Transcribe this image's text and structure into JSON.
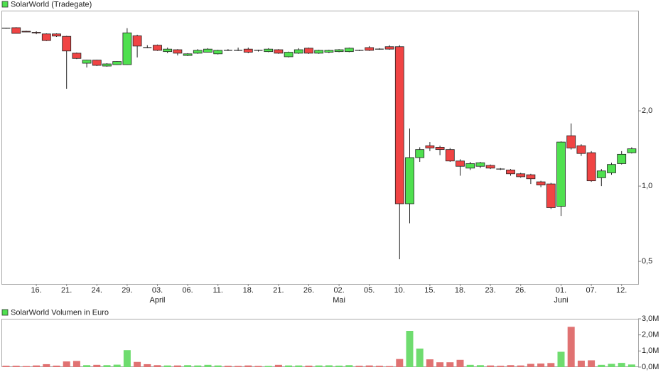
{
  "chart_data": [
    {
      "type": "candlestick",
      "title": "SolarWorld (Tradegate)",
      "categories": [
        null,
        null,
        null,
        "16.",
        null,
        null,
        "21.",
        null,
        null,
        "24.",
        null,
        null,
        "29.",
        null,
        null,
        "03.",
        null,
        null,
        "06.",
        null,
        null,
        "11.",
        null,
        null,
        "18.",
        null,
        null,
        "21.",
        null,
        null,
        "26.",
        null,
        null,
        "02.",
        null,
        null,
        "05.",
        null,
        null,
        "10.",
        null,
        null,
        "15.",
        null,
        null,
        "18.",
        null,
        null,
        "23.",
        null,
        null,
        "26.",
        null,
        null,
        null,
        "01.",
        null,
        null,
        "07.",
        null,
        null,
        "12.",
        null
      ],
      "months": [
        null,
        null,
        null,
        null,
        null,
        null,
        null,
        null,
        null,
        null,
        null,
        null,
        null,
        null,
        null,
        "April",
        null,
        null,
        null,
        null,
        null,
        null,
        null,
        null,
        null,
        null,
        null,
        null,
        null,
        null,
        null,
        null,
        null,
        "Mai",
        null,
        null,
        null,
        null,
        null,
        null,
        null,
        null,
        null,
        null,
        null,
        null,
        null,
        null,
        null,
        null,
        null,
        null,
        null,
        null,
        null,
        "Juni",
        null,
        null,
        null,
        null,
        null,
        null,
        null
      ],
      "open": [
        4.28,
        4.3,
        4.16,
        4.12,
        4.06,
        4.06,
        3.97,
        3.4,
        3.1,
        3.19,
        3.02,
        3.06,
        3.06,
        3.99,
        3.58,
        3.66,
        3.45,
        3.51,
        3.33,
        3.4,
        3.43,
        3.38,
        3.49,
        3.49,
        3.53,
        3.49,
        3.45,
        3.51,
        3.29,
        3.4,
        3.56,
        3.4,
        3.43,
        3.45,
        3.45,
        3.49,
        3.58,
        3.53,
        3.61,
        3.61,
        0.85,
        1.3,
        1.45,
        1.43,
        1.4,
        1.26,
        1.18,
        1.2,
        1.21,
        1.17,
        1.16,
        1.12,
        1.11,
        1.04,
        1.02,
        0.83,
        1.59,
        1.45,
        1.36,
        1.08,
        1.13,
        1.23,
        1.36
      ],
      "high": [
        4.3,
        4.32,
        4.18,
        4.16,
        4.08,
        4.08,
        3.99,
        3.42,
        3.2,
        3.2,
        3.1,
        3.16,
        4.28,
        4.03,
        3.66,
        3.68,
        3.58,
        3.53,
        3.4,
        3.53,
        3.56,
        3.51,
        3.53,
        3.58,
        3.58,
        3.51,
        3.56,
        3.53,
        3.45,
        3.56,
        3.58,
        3.51,
        3.51,
        3.53,
        3.58,
        3.51,
        3.63,
        3.56,
        3.66,
        3.66,
        1.7,
        1.43,
        1.5,
        1.45,
        1.42,
        1.28,
        1.25,
        1.25,
        1.22,
        1.18,
        1.17,
        1.13,
        1.12,
        1.05,
        1.03,
        1.51,
        1.78,
        1.47,
        1.38,
        1.17,
        1.24,
        1.38,
        1.43
      ],
      "low": [
        4.26,
        4.08,
        4.13,
        4.05,
        3.8,
        3.95,
        2.45,
        3.22,
        2.98,
        3.02,
        3.0,
        3.05,
        3.05,
        3.27,
        3.56,
        3.47,
        3.4,
        3.33,
        3.31,
        3.38,
        3.42,
        3.36,
        3.47,
        3.47,
        3.4,
        3.45,
        3.43,
        3.38,
        3.27,
        3.38,
        3.38,
        3.38,
        3.4,
        3.43,
        3.43,
        3.47,
        3.47,
        3.51,
        3.51,
        0.51,
        0.71,
        1.25,
        1.38,
        1.33,
        1.25,
        1.1,
        1.16,
        1.18,
        1.17,
        1.16,
        1.1,
        1.08,
        1.02,
        0.99,
        0.81,
        0.76,
        1.4,
        1.32,
        1.04,
        1.0,
        1.11,
        1.22,
        1.35
      ],
      "close": [
        4.28,
        4.08,
        4.15,
        4.1,
        3.82,
        3.98,
        3.47,
        3.24,
        3.19,
        3.04,
        3.08,
        3.15,
        4.1,
        3.63,
        3.58,
        3.49,
        3.53,
        3.4,
        3.38,
        3.49,
        3.53,
        3.49,
        3.49,
        3.49,
        3.43,
        3.49,
        3.53,
        3.4,
        3.43,
        3.51,
        3.4,
        3.49,
        3.49,
        3.51,
        3.56,
        3.49,
        3.49,
        3.53,
        3.53,
        0.85,
        1.3,
        1.4,
        1.42,
        1.4,
        1.26,
        1.2,
        1.23,
        1.24,
        1.18,
        1.17,
        1.12,
        1.09,
        1.07,
        1.01,
        0.82,
        1.5,
        1.42,
        1.35,
        1.05,
        1.15,
        1.22,
        1.34,
        1.41
      ],
      "ylim": [
        0.406,
        5.03
      ],
      "log_scale": true,
      "yticks": [
        {
          "value": 0.5,
          "label": "0,5"
        },
        {
          "value": 1,
          "label": "1,0"
        },
        {
          "value": 2,
          "label": "2,0"
        }
      ],
      "up_color": "#4fe04f",
      "down_color": "#f04444"
    },
    {
      "type": "bar",
      "title": "SolarWorld Volumen in Euro",
      "values": [
        80000,
        80000,
        60000,
        100000,
        180000,
        90000,
        350000,
        380000,
        120000,
        140000,
        120000,
        150000,
        1050000,
        320000,
        180000,
        120000,
        100000,
        100000,
        120000,
        100000,
        140000,
        100000,
        80000,
        70000,
        100000,
        70000,
        70000,
        140000,
        100000,
        100000,
        90000,
        100000,
        110000,
        90000,
        120000,
        80000,
        100000,
        80000,
        60000,
        500000,
        2250000,
        1150000,
        480000,
        300000,
        300000,
        450000,
        140000,
        120000,
        100000,
        80000,
        120000,
        100000,
        200000,
        220000,
        250000,
        950000,
        2500000,
        400000,
        420000,
        140000,
        200000,
        260000,
        160000
      ],
      "ylim": [
        0,
        3000000
      ],
      "yticks": [
        {
          "value": 0,
          "label": "0,0M"
        },
        {
          "value": 1000000,
          "label": "1,0M"
        },
        {
          "value": 2000000,
          "label": "2,0M"
        },
        {
          "value": 3000000,
          "label": "3,0M"
        }
      ],
      "up_color": "#6fdc6f",
      "down_color": "#e07272"
    }
  ]
}
